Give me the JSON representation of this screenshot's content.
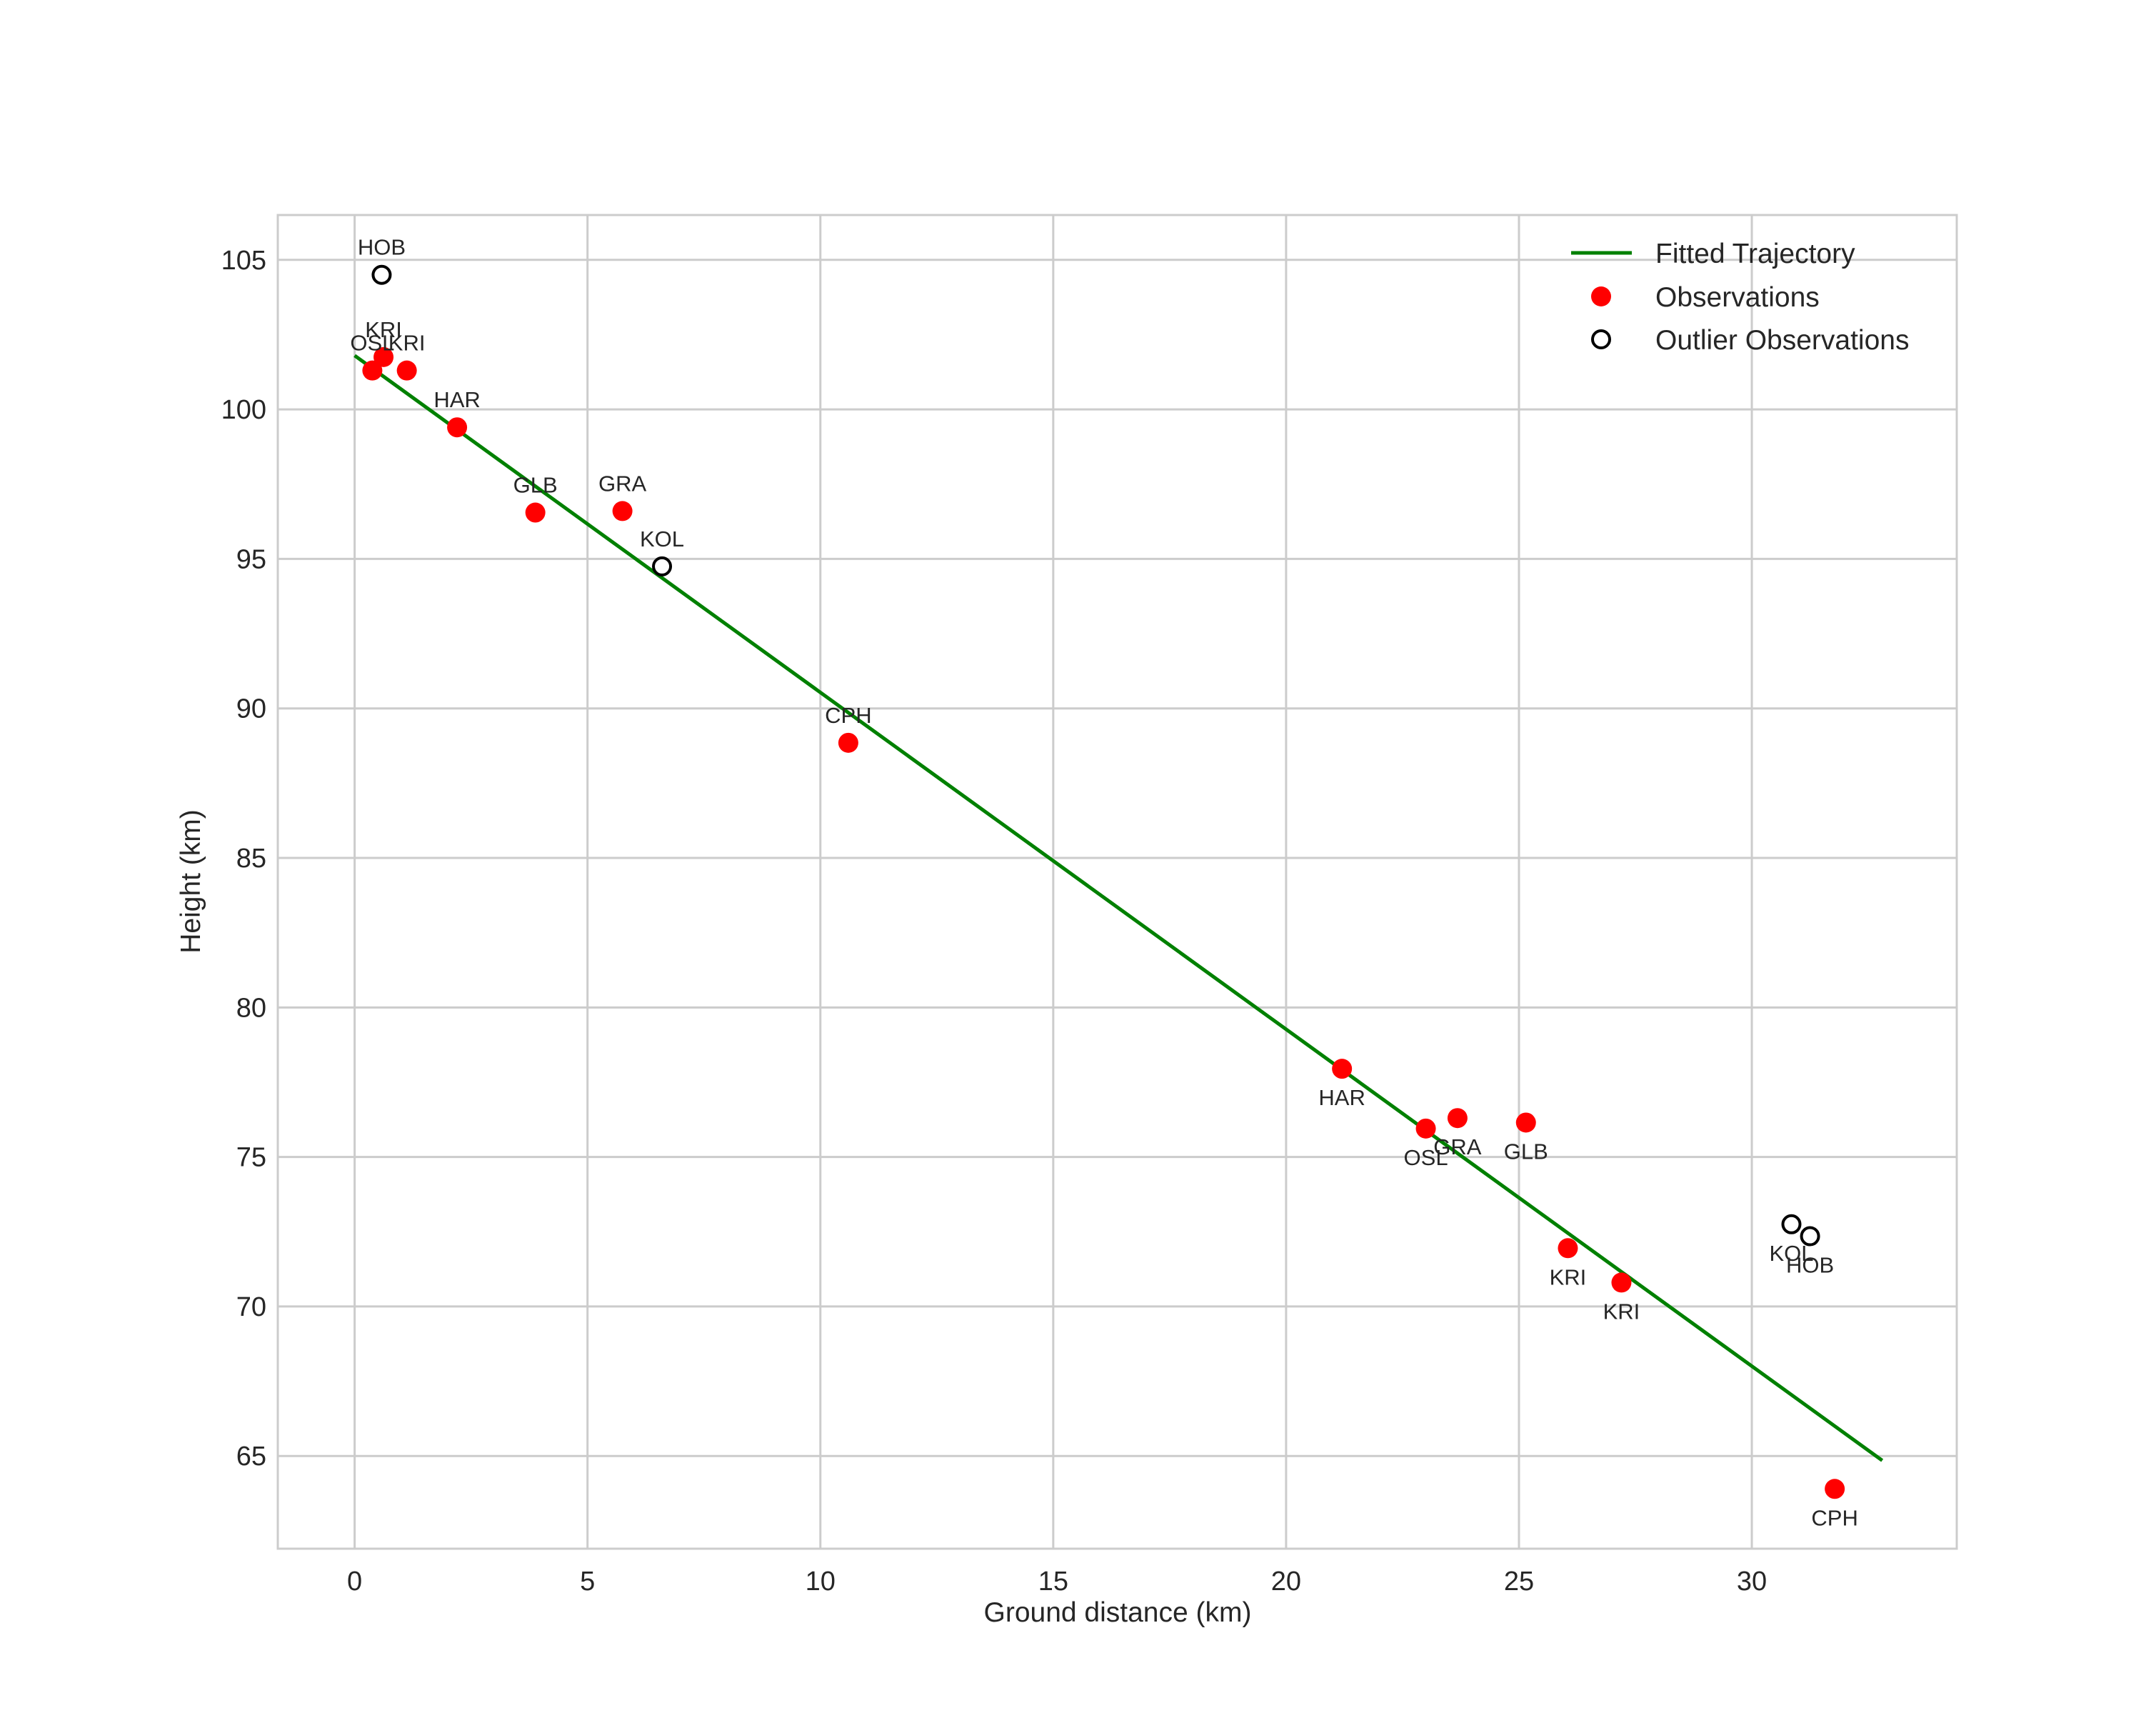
{
  "chart_data": {
    "type": "scatter",
    "title": "",
    "xlabel": "Ground distance (km)",
    "ylabel": "Height (km)",
    "xlim": [
      -1.65,
      34.4
    ],
    "ylim": [
      61.9,
      106.5
    ],
    "xticks": [
      0,
      5,
      10,
      15,
      20,
      25,
      30
    ],
    "yticks": [
      65,
      70,
      75,
      80,
      85,
      90,
      95,
      100,
      105
    ],
    "grid": true,
    "legend_position": "top-right",
    "colors": {
      "trajectory": "#008000",
      "observation": "#ff0000",
      "outlier_edge": "#000000",
      "grid": "#cccccc",
      "frame": "#cccccc"
    },
    "legend": [
      {
        "key": "trajectory",
        "label": "Fitted Trajectory"
      },
      {
        "key": "observation",
        "label": "Observations"
      },
      {
        "key": "outlier",
        "label": "Outlier Observations"
      }
    ],
    "series": [
      {
        "name": "Fitted Trajectory",
        "kind": "line",
        "points": [
          {
            "x": 0.0,
            "y": 101.8
          },
          {
            "x": 32.8,
            "y": 64.85
          }
        ]
      },
      {
        "name": "Observations",
        "kind": "marker",
        "points": [
          {
            "x": 0.38,
            "y": 101.3,
            "label": "OSL",
            "label_pos": "above"
          },
          {
            "x": 0.62,
            "y": 101.75,
            "label": "KRI",
            "label_pos": "above"
          },
          {
            "x": 1.12,
            "y": 101.3,
            "label": "KRI",
            "label_pos": "above"
          },
          {
            "x": 2.2,
            "y": 99.4,
            "label": "HAR",
            "label_pos": "above"
          },
          {
            "x": 3.88,
            "y": 96.55,
            "label": "GLB",
            "label_pos": "above"
          },
          {
            "x": 5.75,
            "y": 96.6,
            "label": "GRA",
            "label_pos": "above"
          },
          {
            "x": 10.6,
            "y": 88.85,
            "label": "CPH",
            "label_pos": "above"
          },
          {
            "x": 21.2,
            "y": 77.95,
            "label": "HAR",
            "label_pos": "below"
          },
          {
            "x": 23.0,
            "y": 75.95,
            "label": "OSL",
            "label_pos": "below"
          },
          {
            "x": 23.68,
            "y": 76.3,
            "label": "GRA",
            "label_pos": "below"
          },
          {
            "x": 25.15,
            "y": 76.15,
            "label": "GLB",
            "label_pos": "below"
          },
          {
            "x": 26.05,
            "y": 71.95,
            "label": "KRI",
            "label_pos": "below"
          },
          {
            "x": 27.2,
            "y": 70.8,
            "label": "KRI",
            "label_pos": "below"
          },
          {
            "x": 31.78,
            "y": 63.9,
            "label": "CPH",
            "label_pos": "below"
          }
        ]
      },
      {
        "name": "Outlier Observations",
        "kind": "marker",
        "points": [
          {
            "x": 0.58,
            "y": 104.5,
            "label": "HOB",
            "label_pos": "above"
          },
          {
            "x": 6.6,
            "y": 94.75,
            "label": "KOL",
            "label_pos": "above"
          },
          {
            "x": 30.85,
            "y": 72.75,
            "label": "KOL",
            "label_pos": "below"
          },
          {
            "x": 31.25,
            "y": 72.35,
            "label": "HOB",
            "label_pos": "below"
          }
        ]
      }
    ]
  }
}
